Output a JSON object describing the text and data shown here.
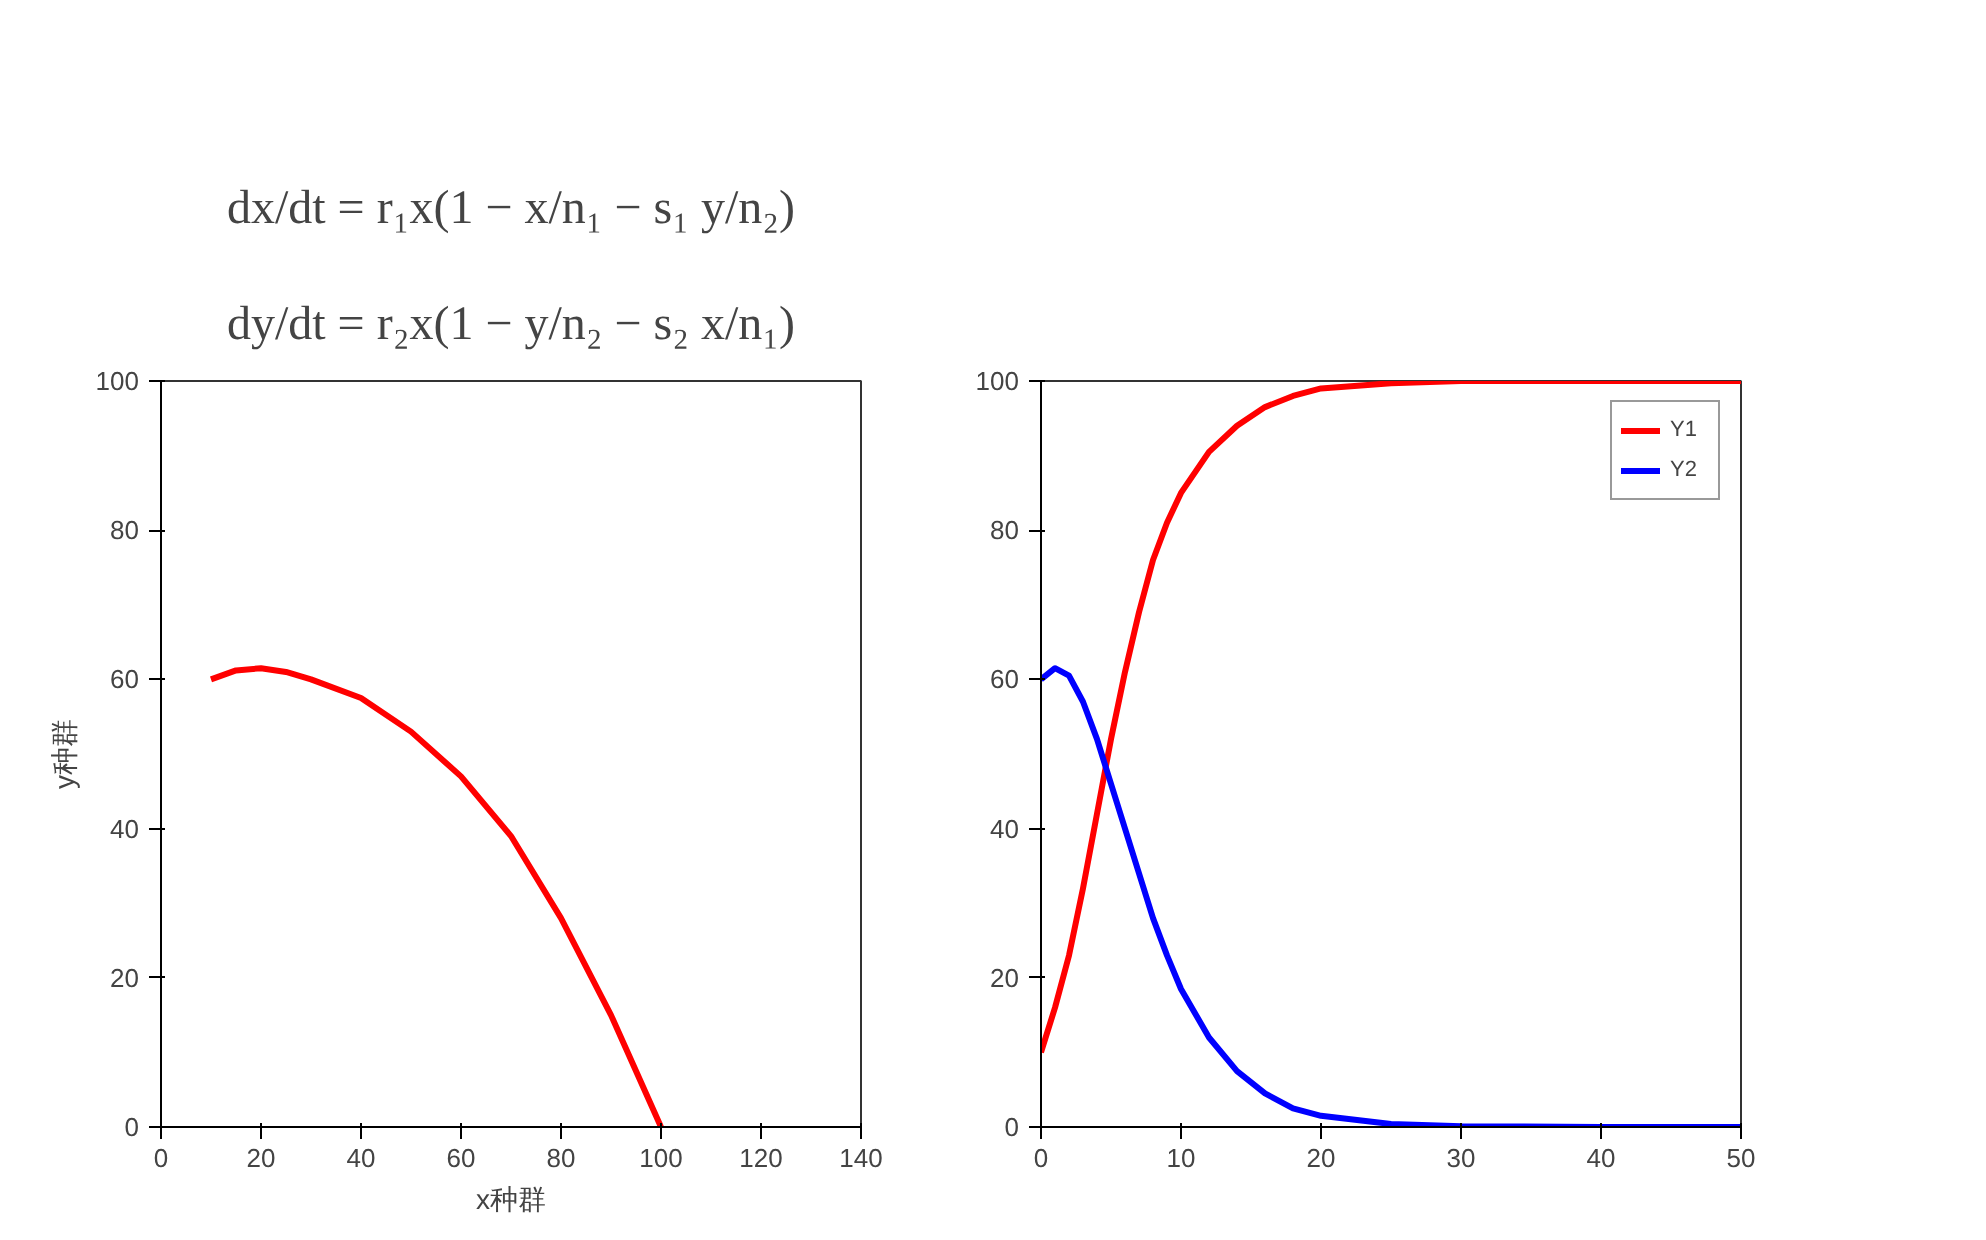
{
  "chart_data": [
    {
      "type": "line",
      "annotations": [
        "dx/dt = r₁x(1 − x/n₁ − s₁ y/n₂)",
        "dy/dt = r₂x(1 − y/n₂ − s₂ x/n₁)"
      ],
      "xlabel": "x种群",
      "ylabel": "y种群",
      "xlim": [
        0,
        140
      ],
      "ylim": [
        0,
        100
      ],
      "xticks": [
        0,
        20,
        40,
        60,
        80,
        100,
        120,
        140
      ],
      "yticks": [
        0,
        20,
        40,
        60,
        80,
        100
      ],
      "grid": false,
      "legend": false,
      "x": [
        10,
        15,
        20,
        25,
        30,
        40,
        50,
        60,
        70,
        80,
        90,
        95,
        100
      ],
      "series": [
        {
          "color": "#ff0000",
          "values": [
            60,
            61.2,
            61.5,
            61,
            60,
            57.5,
            53,
            47,
            39,
            28,
            15,
            7.5,
            0
          ]
        }
      ]
    },
    {
      "type": "line",
      "xlim": [
        0,
        50
      ],
      "ylim": [
        0,
        100
      ],
      "xticks": [
        0,
        10,
        20,
        30,
        40,
        50
      ],
      "yticks": [
        0,
        20,
        40,
        60,
        80,
        100
      ],
      "grid": false,
      "legend": "top right",
      "x": [
        0,
        1,
        2,
        3,
        4,
        5,
        6,
        7,
        8,
        9,
        10,
        12,
        14,
        16,
        18,
        20,
        25,
        30,
        40,
        50
      ],
      "series": [
        {
          "name": "Y1",
          "color": "#ff0000",
          "values": [
            10,
            16,
            23,
            32,
            42,
            52,
            61,
            69,
            76,
            81,
            85,
            90.5,
            94,
            96.5,
            98,
            99,
            99.7,
            100,
            100,
            100
          ]
        },
        {
          "name": "Y2",
          "color": "#0000ff",
          "values": [
            60,
            61.5,
            60.5,
            57,
            52,
            46,
            40,
            34,
            28,
            23,
            18.5,
            12,
            7.5,
            4.5,
            2.5,
            1.5,
            0.4,
            0.1,
            0,
            0
          ]
        }
      ]
    }
  ]
}
